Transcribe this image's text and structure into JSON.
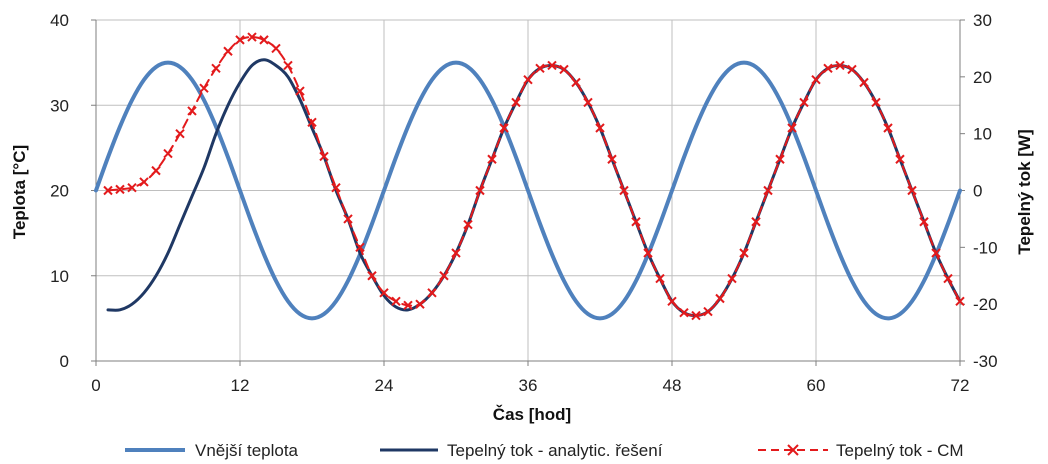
{
  "chart_data": {
    "type": "line",
    "xlabel": "Čas [hod]",
    "ylabel_left": "Teplota [°C]",
    "ylabel_right": "Tepelný tok [W]",
    "xlim": [
      0,
      72
    ],
    "ylim_left": [
      0,
      40
    ],
    "ylim_right": [
      -30,
      30
    ],
    "x_ticks": [
      0,
      12,
      24,
      36,
      48,
      60,
      72
    ],
    "y_ticks_left": [
      0,
      10,
      20,
      30,
      40
    ],
    "y_ticks_right": [
      -30,
      -20,
      -10,
      0,
      10,
      20,
      30
    ],
    "grid": true,
    "legend_position": "bottom",
    "series": [
      {
        "name": "Vnější teplota",
        "axis": "left",
        "color": "#4f81bd",
        "style": "solid",
        "x": [
          0,
          1,
          2,
          3,
          4,
          5,
          6,
          7,
          8,
          9,
          10,
          11,
          12,
          13,
          14,
          15,
          16,
          17,
          18,
          19,
          20,
          21,
          22,
          23,
          24,
          25,
          26,
          27,
          28,
          29,
          30,
          31,
          32,
          33,
          34,
          35,
          36,
          37,
          38,
          39,
          40,
          41,
          42,
          43,
          44,
          45,
          46,
          47,
          48,
          49,
          50,
          51,
          52,
          53,
          54,
          55,
          56,
          57,
          58,
          59,
          60,
          61,
          62,
          63,
          64,
          65,
          66,
          67,
          68,
          69,
          70,
          71,
          72
        ],
        "y": [
          20,
          23.9,
          27.5,
          30.6,
          32.99,
          34.49,
          35,
          34.49,
          32.99,
          30.6,
          27.5,
          23.9,
          20,
          16.1,
          12.5,
          9.4,
          7.01,
          5.51,
          5,
          5.51,
          7.01,
          9.4,
          12.5,
          16.1,
          20,
          23.9,
          27.5,
          30.6,
          32.99,
          34.49,
          35,
          34.49,
          32.99,
          30.6,
          27.5,
          23.9,
          20,
          16.1,
          12.5,
          9.4,
          7.01,
          5.51,
          5,
          5.51,
          7.01,
          9.4,
          12.5,
          16.1,
          20,
          23.9,
          27.5,
          30.6,
          32.99,
          34.49,
          35,
          34.49,
          32.99,
          30.6,
          27.5,
          23.9,
          20,
          16.1,
          12.5,
          9.4,
          7.01,
          5.51,
          5,
          5.51,
          7.01,
          9.4,
          12.5,
          16.1,
          20
        ]
      },
      {
        "name": "Tepelný tok  - analytic. řešení",
        "axis": "right",
        "color": "#1f3864",
        "style": "solid",
        "x": [
          1,
          2,
          3,
          4,
          5,
          6,
          7,
          8,
          9,
          10,
          11,
          12,
          13,
          14,
          15,
          16,
          17,
          18,
          19,
          20,
          21,
          22,
          23,
          24,
          25,
          26,
          27,
          28,
          29,
          30,
          31,
          32,
          33,
          34,
          35,
          36,
          37,
          38,
          39,
          40,
          41,
          42,
          43,
          44,
          45,
          46,
          47,
          48,
          49,
          50,
          51,
          52,
          53,
          54,
          55,
          56,
          57,
          58,
          59,
          60,
          61,
          62,
          63,
          64,
          65,
          66,
          67,
          68,
          69,
          70,
          71,
          72
        ],
        "y": [
          -21,
          -21,
          -20,
          -18,
          -15,
          -11,
          -6,
          -1,
          4,
          10,
          15,
          19,
          22,
          23,
          22,
          20,
          16,
          11,
          6,
          0,
          -5,
          -11,
          -15,
          -18.5,
          -20.5,
          -21,
          -20,
          -18,
          -15,
          -11,
          -6,
          0,
          5.5,
          11,
          15.5,
          19.5,
          21.5,
          22,
          21.3,
          19,
          15.5,
          11,
          5.5,
          0,
          -5.5,
          -11,
          -15.5,
          -19.5,
          -21.5,
          -22,
          -21.3,
          -19,
          -15.5,
          -11,
          -5.5,
          0,
          5.5,
          11,
          15.5,
          19.5,
          21.5,
          22,
          21.3,
          19,
          15.5,
          11,
          5.5,
          0,
          -5.5,
          -11,
          -15.5,
          -19.5
        ]
      },
      {
        "name": "Tepelný tok  - CM",
        "axis": "right",
        "color": "#e31a1c",
        "style": "dashed",
        "marker": "x",
        "x": [
          1,
          2,
          3,
          4,
          5,
          6,
          7,
          8,
          9,
          10,
          11,
          12,
          13,
          14,
          15,
          16,
          17,
          18,
          19,
          20,
          21,
          22,
          23,
          24,
          25,
          26,
          27,
          28,
          29,
          30,
          31,
          32,
          33,
          34,
          35,
          36,
          37,
          38,
          39,
          40,
          41,
          42,
          43,
          44,
          45,
          46,
          47,
          48,
          49,
          50,
          51,
          52,
          53,
          54,
          55,
          56,
          57,
          58,
          59,
          60,
          61,
          62,
          63,
          64,
          65,
          66,
          67,
          68,
          69,
          70,
          71,
          72
        ],
        "y": [
          0,
          0.2,
          0.5,
          1.5,
          3.5,
          6.5,
          10,
          14,
          18,
          21.5,
          24.5,
          26.5,
          27,
          26.5,
          25,
          22,
          17.5,
          12,
          6,
          0.5,
          -5,
          -10,
          -15,
          -18,
          -19.5,
          -20.2,
          -20,
          -18,
          -15,
          -11,
          -6,
          0,
          5.5,
          11,
          15.5,
          19.5,
          21.5,
          22,
          21.3,
          19,
          15.5,
          11,
          5.5,
          0,
          -5.5,
          -11,
          -15.5,
          -19.5,
          -21.5,
          -22,
          -21.3,
          -19,
          -15.5,
          -11,
          -5.5,
          0,
          5.5,
          11,
          15.5,
          19.5,
          21.5,
          22,
          21.3,
          19,
          15.5,
          11,
          5.5,
          0,
          -5.5,
          -11,
          -15.5,
          -19.5
        ]
      }
    ]
  }
}
